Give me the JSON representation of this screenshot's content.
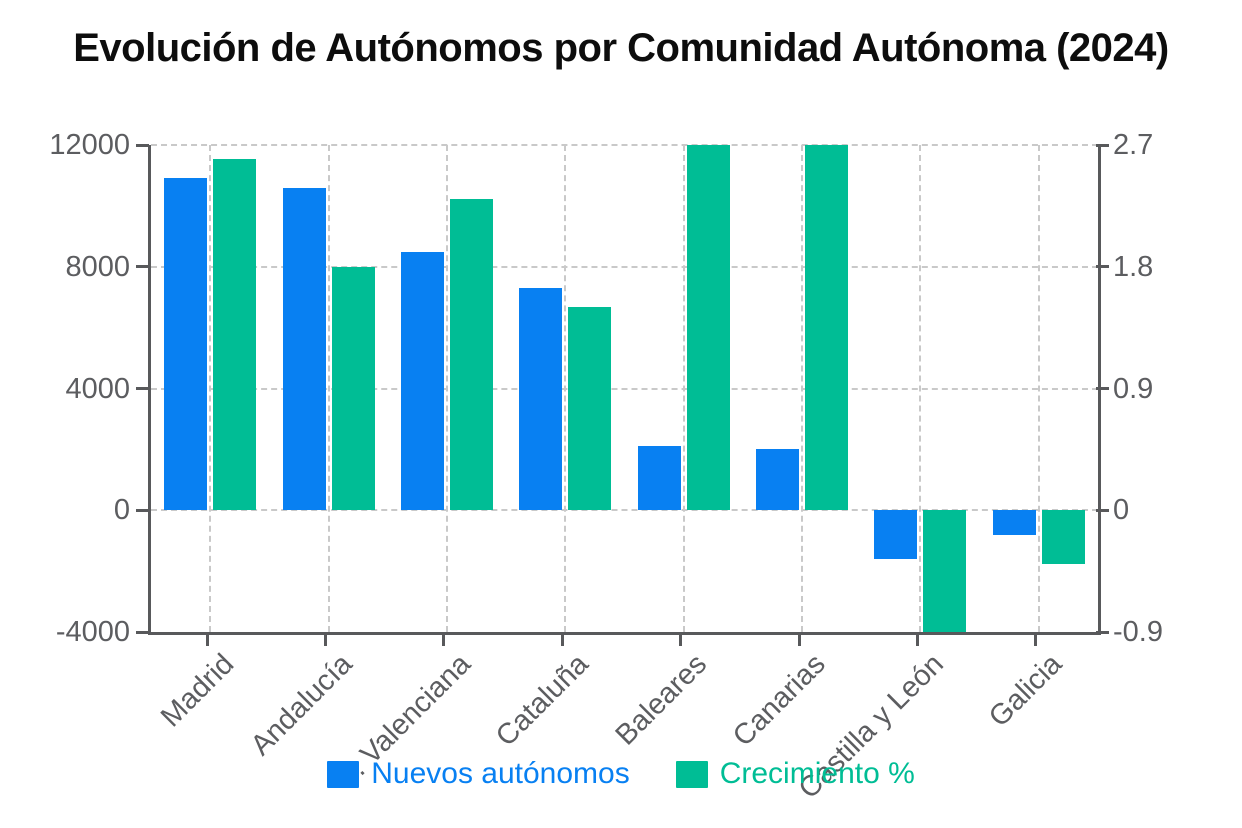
{
  "title": "Evolución de Autónomos por Comunidad Autónoma (2024)",
  "chart_data": {
    "type": "bar",
    "title": "Evolución de Autónomos por Comunidad Autónoma (2024)",
    "categories": [
      "Madrid",
      "Andalucía",
      "C. Valenciana",
      "Cataluña",
      "Baleares",
      "Canarias",
      "Castilla y León",
      "Galicia"
    ],
    "series": [
      {
        "name": "Nuevos autónomos",
        "axis": "left",
        "color": "#0880f2",
        "values": [
          10900,
          10600,
          8500,
          7300,
          2100,
          2000,
          -1600,
          -800
        ]
      },
      {
        "name": "Crecimiento %",
        "axis": "right",
        "color": "#00bd95",
        "values": [
          2.6,
          1.8,
          2.3,
          1.5,
          2.7,
          2.7,
          -0.9,
          -0.4
        ]
      }
    ],
    "axes": {
      "left": {
        "ticks": [
          "12000",
          "8000",
          "4000",
          "0",
          "-4000"
        ],
        "range": [
          -4000,
          12000
        ]
      },
      "right": {
        "ticks": [
          "2.7",
          "1.8",
          "0.9",
          "0",
          "-0.9"
        ],
        "range": [
          -0.9,
          2.7
        ]
      }
    },
    "grid": true,
    "legend_position": "bottom"
  },
  "colors": {
    "axis_line": "#58595b",
    "grid_line": "#c9c9c9",
    "tick_text": "#5c5d60",
    "title_text": "#0d0d0d",
    "background": "#ffffff"
  }
}
